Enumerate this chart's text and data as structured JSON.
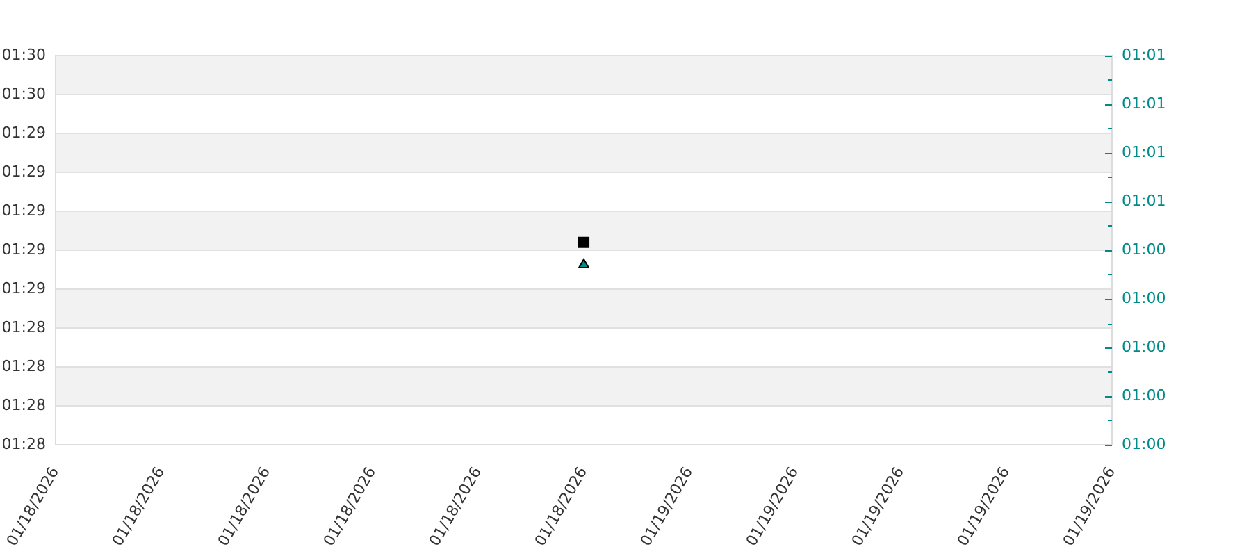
{
  "chart_data": {
    "type": "scatter",
    "x": [
      "2026-01-18T20:00"
    ],
    "series": [
      {
        "color": "#000000",
        "marker": "square",
        "values": [
          1.4806
        ]
      },
      {
        "color": "#008b8b",
        "marker": "triangle",
        "axis": "y2",
        "values": [
          1.0061
        ]
      }
    ],
    "xlim": [
      "2026-01-18T00:00",
      "2026-01-19T16:00"
    ],
    "xticks": [
      {
        "value": "2026-01-18T00:00",
        "label": "01/18/2026"
      },
      {
        "value": "2026-01-18T04:00",
        "label": "01/18/2026"
      },
      {
        "value": "2026-01-18T08:00",
        "label": "01/18/2026"
      },
      {
        "value": "2026-01-18T12:00",
        "label": "01/18/2026"
      },
      {
        "value": "2026-01-18T16:00",
        "label": "01/18/2026"
      },
      {
        "value": "2026-01-18T20:00",
        "label": "01/18/2026"
      },
      {
        "value": "2026-01-19T00:00",
        "label": "01/19/2026"
      },
      {
        "value": "2026-01-19T04:00",
        "label": "01/19/2026"
      },
      {
        "value": "2026-01-19T08:00",
        "label": "01/19/2026"
      },
      {
        "value": "2026-01-19T12:00",
        "label": "01/19/2026"
      },
      {
        "value": "2026-01-19T16:00",
        "label": "01/19/2026"
      }
    ],
    "ylim": [
      1.465,
      1.495
    ],
    "yticks": [
      {
        "value": 1.465,
        "label": "01:28"
      },
      {
        "value": 1.468,
        "label": "01:28"
      },
      {
        "value": 1.471,
        "label": "01:28"
      },
      {
        "value": 1.474,
        "label": "01:28"
      },
      {
        "value": 1.477,
        "label": "01:29"
      },
      {
        "value": 1.48,
        "label": "01:29"
      },
      {
        "value": 1.483,
        "label": "01:29"
      },
      {
        "value": 1.486,
        "label": "01:29"
      },
      {
        "value": 1.489,
        "label": "01:29"
      },
      {
        "value": 1.492,
        "label": "01:30"
      },
      {
        "value": 1.495,
        "label": "01:30"
      }
    ],
    "y2lim": [
      0.995,
      1.019
    ],
    "y2ticks": [
      {
        "value": 0.995,
        "label": "01:00"
      },
      {
        "value": 0.9965,
        "label": null
      },
      {
        "value": 0.998,
        "label": "01:00"
      },
      {
        "value": 0.9995,
        "label": null
      },
      {
        "value": 1.001,
        "label": "01:00"
      },
      {
        "value": 1.0025,
        "label": null
      },
      {
        "value": 1.004,
        "label": "01:00"
      },
      {
        "value": 1.0055,
        "label": null
      },
      {
        "value": 1.007,
        "label": "01:00"
      },
      {
        "value": 1.0085,
        "label": null
      },
      {
        "value": 1.01,
        "label": "01:01"
      },
      {
        "value": 1.0115,
        "label": null
      },
      {
        "value": 1.013,
        "label": "01:01"
      },
      {
        "value": 1.0145,
        "label": null
      },
      {
        "value": 1.016,
        "label": "01:01"
      },
      {
        "value": 1.0175,
        "label": null
      },
      {
        "value": 1.019,
        "label": "01:01"
      }
    ],
    "bands": [
      {
        "axis": "y",
        "from": 1.492,
        "to": 1.495,
        "color": "#f2f2f2"
      },
      {
        "axis": "y",
        "from": 1.486,
        "to": 1.489,
        "color": "#f2f2f2"
      },
      {
        "axis": "y",
        "from": 1.48,
        "to": 1.483,
        "color": "#f2f2f2"
      },
      {
        "axis": "y",
        "from": 1.474,
        "to": 1.477,
        "color": "#f2f2f2"
      },
      {
        "axis": "y",
        "from": 1.468,
        "to": 1.471,
        "color": "#f2f2f2"
      }
    ],
    "grid": "y"
  }
}
